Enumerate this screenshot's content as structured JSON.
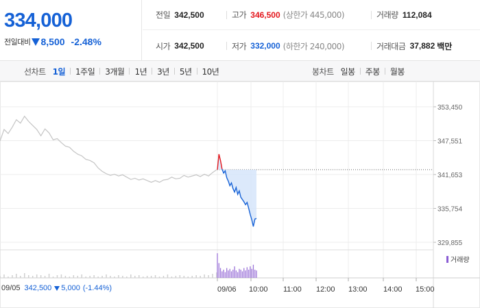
{
  "price": {
    "current": "334,000",
    "change_label": "전일대비",
    "change_abs": "8,500",
    "change_pct": "-2.48%",
    "color_down": "#1561d6",
    "color_up": "#e3161c"
  },
  "quote": {
    "prev_close": {
      "label": "전일",
      "value": "342,500"
    },
    "high": {
      "label": "고가",
      "value": "346,500",
      "sub": "(상한가 445,000)"
    },
    "volume": {
      "label": "거래량",
      "value": "112,084"
    },
    "open": {
      "label": "시가",
      "value": "342,500"
    },
    "low": {
      "label": "저가",
      "value": "332,000",
      "sub": "(하한가 240,000)"
    },
    "turnover": {
      "label": "거래대금",
      "value": "37,882",
      "unit": "백만"
    }
  },
  "tabs": {
    "line_label": "선차트",
    "line_periods": [
      "1일",
      "1주일",
      "3개월",
      "1년",
      "3년",
      "5년",
      "10년"
    ],
    "line_active": "1일",
    "candle_label": "봉차트",
    "candle_periods": [
      "일봉",
      "주봉",
      "월봉"
    ]
  },
  "chart_data": {
    "type": "line",
    "y_ticks": [
      "353,450",
      "347,551",
      "341,653",
      "335,754",
      "329,855"
    ],
    "ylim": [
      329855,
      353450
    ],
    "x_ticks": [
      "09/05",
      "09/06",
      "10:00",
      "11:00",
      "12:00",
      "13:00",
      "14:00",
      "15:00"
    ],
    "reference_price": 342500,
    "volume_label": "거래량",
    "footer": {
      "date": "09/05",
      "close": "342,500",
      "change": "5,000",
      "pct": "(-1.44%)"
    },
    "series": [
      {
        "period": "09/05",
        "values": [
          347500,
          349500,
          348800,
          349900,
          351200,
          350600,
          351800,
          350900,
          350200,
          349500,
          348400,
          349600,
          348900,
          347700,
          347900,
          347200,
          346600,
          346400,
          345700,
          345200,
          344900,
          344300,
          344100,
          343700,
          342800,
          342200,
          341800,
          341500,
          341700,
          341400,
          341600,
          341200,
          340800,
          341000,
          340700,
          340900,
          340600,
          340300,
          340600,
          340300,
          340700,
          340800,
          341200,
          340900,
          341000,
          341500,
          341200,
          341400,
          341600,
          341300,
          341700,
          341400,
          342000,
          342500
        ]
      },
      {
        "period": "09/06",
        "values": [
          342500,
          345200,
          344100,
          342600,
          341900,
          342300,
          341100,
          340500,
          339700,
          340200,
          339200,
          338600,
          339400,
          338200,
          338800,
          337700,
          337300,
          336900,
          336400,
          336800,
          335800,
          334700,
          333800,
          332600,
          333900,
          334000
        ]
      }
    ],
    "volume_09_05": [
      3,
      5,
      2,
      4,
      6,
      3,
      7,
      4,
      3,
      5,
      4,
      3,
      6,
      2,
      4,
      5,
      3,
      2,
      4,
      3,
      5,
      2,
      3,
      4,
      2,
      3,
      5,
      3,
      2,
      4,
      3,
      2,
      5,
      3,
      4,
      2,
      3,
      3,
      4,
      2,
      3,
      5,
      2,
      3,
      4,
      3,
      2,
      3,
      4,
      3,
      5,
      4,
      6,
      8
    ],
    "volume_09_06": [
      30,
      18,
      12,
      8,
      10,
      7,
      12,
      9,
      11,
      8,
      10,
      14,
      9,
      7,
      11,
      10,
      8,
      12,
      9,
      13,
      10,
      14,
      11,
      16,
      10,
      9
    ]
  }
}
